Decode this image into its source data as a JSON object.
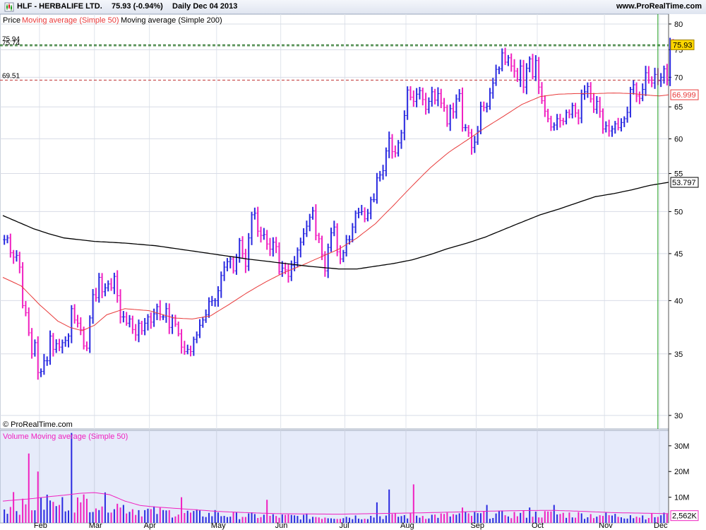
{
  "header": {
    "instrument": "HLF - HERBALIFE LTD.",
    "quote": "75.93 (-0.94%)",
    "period": "Daily  Dec 04 2013",
    "website": "www.ProRealTime.com"
  },
  "colors": {
    "up": "#2a2ae0",
    "down": "#f020c0",
    "ma50": "#e83a3a",
    "ma200": "#000000",
    "vol_ma": "#f020c0",
    "cursor": "#1a9a1a",
    "last_badge": "#ffd700"
  },
  "chart_data": [
    {
      "type": "bar",
      "title": "Price",
      "legend": [
        {
          "name": "Price",
          "color": "#000000"
        },
        {
          "name": "Moving average (Simple 50)",
          "color": "#e83a3a"
        },
        {
          "name": "Moving average (Simple 200)",
          "color": "#000000"
        }
      ],
      "watermark": "© ProRealTime.com",
      "y_scale": "log",
      "ylim": [
        29,
        82
      ],
      "y_ticks": [
        "80",
        "75",
        "70",
        "65",
        "60",
        "55",
        "50",
        "45",
        "40",
        "35",
        "30"
      ],
      "x_ticks": [
        "Feb",
        "Mar",
        "Apr",
        "May",
        "Jun",
        "Jul",
        "Aug",
        "Sep",
        "Oct",
        "Nov",
        "Dec"
      ],
      "x_tick_sessions": [
        12,
        30,
        48,
        70,
        91,
        112,
        132,
        155,
        175,
        197,
        215
      ],
      "sessions": 218,
      "price_series": [
        46.6,
        46.8,
        45.1,
        44.6,
        44.8,
        43.5,
        39.5,
        38.8,
        36.9,
        35.0,
        36.0,
        33.4,
        33.5,
        34.4,
        34.4,
        36.6,
        35.4,
        35.9,
        35.6,
        36.0,
        36.2,
        36.6,
        39.2,
        38.1,
        37.8,
        37.2,
        35.7,
        35.5,
        38.3,
        40.6,
        40.3,
        42.4,
        40.9,
        41.3,
        41.7,
        41.3,
        42.5,
        40.5,
        38.4,
        38.4,
        37.8,
        38.2,
        37.2,
        36.7,
        37.8,
        37.1,
        37.8,
        38.4,
        37.9,
        38.7,
        39.4,
        38.4,
        38.4,
        39.2,
        37.4,
        38.3,
        37.7,
        36.8,
        35.6,
        35.2,
        35.4,
        35.2,
        36.3,
        36.7,
        37.6,
        38.1,
        38.6,
        39.9,
        40.0,
        40.0,
        41.0,
        42.6,
        43.5,
        44.1,
        44.4,
        43.1,
        44.6,
        46.5,
        45.0,
        43.6,
        46.8,
        49.6,
        49.8,
        47.6,
        47.1,
        47.2,
        46.1,
        45.5,
        46.3,
        45.8,
        43.0,
        43.4,
        43.2,
        42.5,
        43.7,
        44.0,
        45.4,
        46.3,
        47.3,
        48.2,
        49.3,
        50.1,
        47.1,
        46.7,
        44.9,
        43.1,
        45.7,
        47.4,
        48.1,
        45.2,
        44.4,
        45.1,
        46.6,
        46.6,
        48.1,
        49.8,
        49.9,
        50.0,
        49.1,
        49.8,
        51.5,
        51.5,
        54.4,
        54.8,
        55.4,
        58.2,
        60.1,
        58.1,
        57.9,
        59.4,
        60.9,
        63.6,
        67.8,
        66.6,
        65.9,
        67.1,
        67.7,
        66.2,
        64.6,
        65.9,
        67.5,
        66.1,
        67.2,
        65.6,
        64.9,
        62.3,
        64.7,
        64.2,
        66.3,
        67.2,
        61.7,
        61.7,
        60.9,
        58.7,
        59.5,
        61.2,
        65.1,
        64.9,
        65.1,
        67.3,
        69.0,
        71.4,
        71.5,
        74.4,
        72.7,
        73.5,
        72.0,
        71.1,
        69.6,
        72.0,
        68.3,
        71.6,
        73.3,
        70.1,
        73.0,
        68.3,
        66.0,
        64.3,
        63.1,
        61.8,
        62.1,
        63.1,
        62.8,
        62.7,
        64.1,
        63.8,
        65.2,
        64.0,
        63.2,
        67.1,
        67.5,
        68.4,
        66.3,
        64.6,
        65.9,
        64.3,
        61.5,
        62.0,
        61.2,
        61.5,
        62.3,
        61.7,
        62.5,
        63.1,
        64.1,
        67.9,
        68.7,
        66.8,
        66.4,
        67.9,
        70.8,
        69.5,
        69.0,
        70.5,
        69.4,
        70.0,
        71.5,
        69.5,
        76.5,
        75.93
      ],
      "last_price": {
        "label": "75.93",
        "value": 75.93
      },
      "reference_lines": [
        {
          "label": "75.94",
          "value": 75.94
        },
        {
          "label": "75.74",
          "value": 75.74
        },
        {
          "label": "69.51",
          "value": 69.51
        }
      ],
      "series": [
        {
          "name": "Moving average (Simple 50)",
          "anchors": [
            [
              0,
              42.4
            ],
            [
              6,
              41.5
            ],
            [
              12,
              39.6
            ],
            [
              18,
              38.0
            ],
            [
              22,
              37.4
            ],
            [
              26,
              37.1
            ],
            [
              30,
              37.6
            ],
            [
              34,
              38.6
            ],
            [
              40,
              39.2
            ],
            [
              48,
              39.0
            ],
            [
              56,
              38.3
            ],
            [
              62,
              38.2
            ],
            [
              68,
              38.5
            ],
            [
              74,
              39.6
            ],
            [
              80,
              40.8
            ],
            [
              86,
              41.9
            ],
            [
              92,
              42.9
            ],
            [
              98,
              43.7
            ],
            [
              104,
              44.6
            ],
            [
              110,
              45.5
            ],
            [
              116,
              46.8
            ],
            [
              122,
              48.5
            ],
            [
              128,
              50.8
            ],
            [
              134,
              53.3
            ],
            [
              140,
              55.8
            ],
            [
              146,
              58.0
            ],
            [
              152,
              59.8
            ],
            [
              158,
              61.7
            ],
            [
              164,
              63.5
            ],
            [
              170,
              65.4
            ],
            [
              176,
              66.7
            ],
            [
              182,
              67.1
            ],
            [
              188,
              67.2
            ],
            [
              194,
              67.2
            ],
            [
              200,
              67.3
            ],
            [
              206,
              67.2
            ],
            [
              212,
              66.9
            ],
            [
              215,
              66.8
            ],
            [
              218,
              67.0
            ]
          ],
          "last_label": "66.999",
          "last_value": 66.999
        },
        {
          "name": "Moving average (Simple 200)",
          "anchors": [
            [
              0,
              49.5
            ],
            [
              5,
              48.7
            ],
            [
              10,
              47.9
            ],
            [
              15,
              47.3
            ],
            [
              20,
              46.8
            ],
            [
              25,
              46.6
            ],
            [
              30,
              46.4
            ],
            [
              40,
              46.2
            ],
            [
              50,
              45.9
            ],
            [
              60,
              45.4
            ],
            [
              70,
              44.9
            ],
            [
              80,
              44.4
            ],
            [
              90,
              44.0
            ],
            [
              100,
              43.6
            ],
            [
              110,
              43.3
            ],
            [
              116,
              43.3
            ],
            [
              122,
              43.6
            ],
            [
              128,
              43.9
            ],
            [
              134,
              44.3
            ],
            [
              140,
              44.9
            ],
            [
              146,
              45.6
            ],
            [
              152,
              46.2
            ],
            [
              158,
              46.9
            ],
            [
              164,
              47.8
            ],
            [
              170,
              48.7
            ],
            [
              176,
              49.6
            ],
            [
              182,
              50.3
            ],
            [
              188,
              51.1
            ],
            [
              194,
              51.9
            ],
            [
              200,
              52.3
            ],
            [
              206,
              52.8
            ],
            [
              212,
              53.4
            ],
            [
              218,
              53.8
            ]
          ],
          "last_label": "53.797",
          "last_value": 53.797
        }
      ]
    },
    {
      "type": "bar",
      "title": "Volume Moving average (Simple 50)",
      "legend": [
        {
          "name": "Volume",
          "color": "#f020c0"
        },
        {
          "name": "Moving average (Simple 50)",
          "color": "#f020c0"
        }
      ],
      "ylim": [
        0,
        36
      ],
      "y_unit": "M",
      "y_ticks": [
        "30M",
        "20M",
        "10M"
      ],
      "spikes": [
        [
          3,
          12
        ],
        [
          8,
          27
        ],
        [
          11,
          20
        ],
        [
          14,
          11
        ],
        [
          18,
          7
        ],
        [
          22,
          35
        ],
        [
          25,
          8
        ],
        [
          31,
          5
        ],
        [
          38,
          6
        ],
        [
          52,
          5
        ],
        [
          58,
          10
        ],
        [
          69,
          5
        ],
        [
          86,
          9
        ],
        [
          122,
          8
        ],
        [
          126,
          13
        ],
        [
          134,
          15
        ],
        [
          150,
          6
        ],
        [
          158,
          7
        ],
        [
          164,
          3
        ],
        [
          172,
          6
        ],
        [
          180,
          7
        ],
        [
          195,
          3
        ],
        [
          205,
          3
        ],
        [
          216,
          4
        ]
      ],
      "vol_ma_anchors": [
        [
          0,
          8.5
        ],
        [
          5,
          9.0
        ],
        [
          10,
          9.5
        ],
        [
          15,
          10.2
        ],
        [
          20,
          10.8
        ],
        [
          25,
          11.5
        ],
        [
          30,
          11.8
        ],
        [
          35,
          11.0
        ],
        [
          40,
          8.5
        ],
        [
          45,
          6.8
        ],
        [
          50,
          6.2
        ],
        [
          55,
          5.8
        ],
        [
          60,
          5.4
        ],
        [
          70,
          4.5
        ],
        [
          80,
          4.0
        ],
        [
          90,
          3.6
        ],
        [
          100,
          3.5
        ],
        [
          110,
          3.4
        ],
        [
          120,
          3.6
        ],
        [
          130,
          3.8
        ],
        [
          140,
          4.0
        ],
        [
          150,
          4.3
        ],
        [
          160,
          4.6
        ],
        [
          170,
          4.8
        ],
        [
          180,
          4.9
        ],
        [
          190,
          4.5
        ],
        [
          200,
          4.0
        ],
        [
          210,
          3.8
        ],
        [
          218,
          3.6
        ]
      ],
      "last_label": "2,562K",
      "last_value": 2.562
    }
  ]
}
